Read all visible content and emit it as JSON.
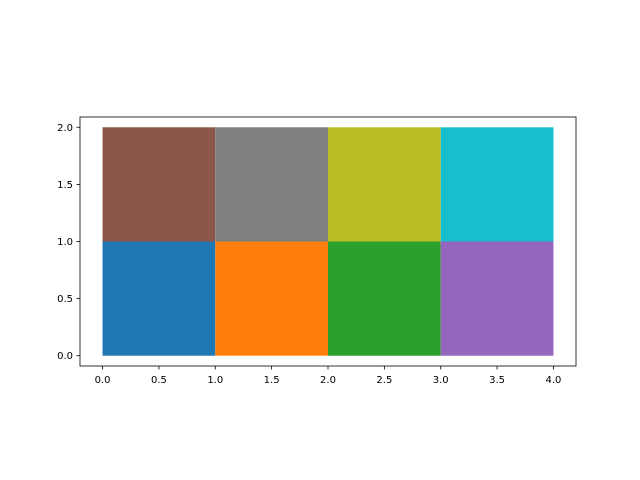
{
  "chart_data": {
    "type": "heatmap",
    "title": "",
    "xlabel": "",
    "ylabel": "",
    "xlim": [
      -0.2,
      4.2
    ],
    "ylim": [
      -0.09,
      2.09
    ],
    "grid": false,
    "x_ticks": [
      0.0,
      0.5,
      1.0,
      1.5,
      2.0,
      2.5,
      3.0,
      3.5,
      4.0
    ],
    "x_tick_labels": [
      "0.0",
      "0.5",
      "1.0",
      "1.5",
      "2.0",
      "2.5",
      "3.0",
      "3.5",
      "4.0"
    ],
    "y_ticks": [
      0.0,
      0.5,
      1.0,
      1.5,
      2.0
    ],
    "y_tick_labels": [
      "0.0",
      "0.5",
      "1.0",
      "1.5",
      "2.0"
    ],
    "cells": [
      {
        "x0": 0,
        "x1": 1,
        "y0": 0,
        "y1": 1,
        "color": "#1f77b4"
      },
      {
        "x0": 1,
        "x1": 2,
        "y0": 0,
        "y1": 1,
        "color": "#ff7f0e"
      },
      {
        "x0": 2,
        "x1": 3,
        "y0": 0,
        "y1": 1,
        "color": "#2ca02c"
      },
      {
        "x0": 3,
        "x1": 4,
        "y0": 0,
        "y1": 1,
        "color": "#9467bd"
      },
      {
        "x0": 0,
        "x1": 1,
        "y0": 1,
        "y1": 2,
        "color": "#8c564b"
      },
      {
        "x0": 1,
        "x1": 2,
        "y0": 1,
        "y1": 2,
        "color": "#7f7f7f"
      },
      {
        "x0": 2,
        "x1": 3,
        "y0": 1,
        "y1": 2,
        "color": "#bcbd22"
      },
      {
        "x0": 3,
        "x1": 4,
        "y0": 1,
        "y1": 2,
        "color": "#17becf"
      }
    ]
  }
}
